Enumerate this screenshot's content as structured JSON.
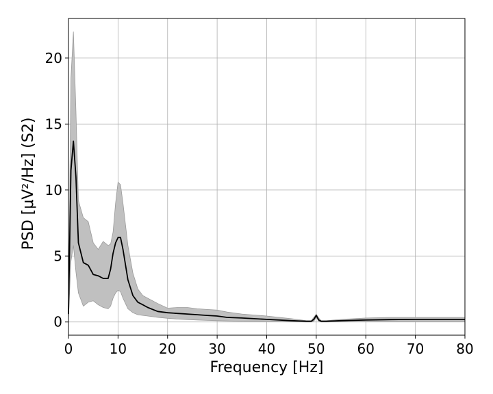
{
  "chart_data": {
    "type": "line",
    "title": "",
    "xlabel": "Frequency [Hz]",
    "ylabel": "PSD [μV²/Hz] (S2)",
    "xlim": [
      0,
      80
    ],
    "ylim": [
      -1,
      23
    ],
    "xticks": [
      0,
      10,
      20,
      30,
      40,
      50,
      60,
      70,
      80
    ],
    "yticks": [
      0,
      5,
      10,
      15,
      20
    ],
    "grid": true,
    "legend": "none",
    "colors": {
      "line": "#000000",
      "band": "#c0c0c0",
      "grid": "#b0b0b0"
    },
    "series": [
      {
        "x": [
          0,
          0.5,
          1,
          1.5,
          2,
          3,
          4,
          5,
          6,
          7,
          8,
          8.5,
          9,
          9.5,
          10,
          10.5,
          11,
          12,
          13,
          14,
          15,
          16,
          18,
          20,
          22,
          24,
          26,
          28,
          30,
          32,
          35,
          40,
          45,
          48,
          49,
          49.5,
          50,
          50.5,
          51,
          52,
          55,
          60,
          65,
          70,
          75,
          80
        ],
        "y": [
          0.6,
          11.5,
          13.7,
          11.0,
          6.0,
          4.5,
          4.3,
          3.6,
          3.5,
          3.3,
          3.3,
          4.0,
          5.2,
          6.0,
          6.4,
          6.4,
          5.5,
          3.2,
          2.0,
          1.5,
          1.3,
          1.1,
          0.8,
          0.7,
          0.65,
          0.6,
          0.55,
          0.5,
          0.45,
          0.35,
          0.3,
          0.2,
          0.1,
          0.05,
          0.05,
          0.2,
          0.5,
          0.15,
          0.05,
          0.05,
          0.1,
          0.15,
          0.18,
          0.2,
          0.2,
          0.2
        ]
      },
      {
        "x": [
          0,
          0.5,
          1,
          1.5,
          2,
          3,
          4,
          5,
          6,
          7,
          8,
          8.5,
          9,
          9.5,
          10,
          10.5,
          11,
          12,
          13,
          14,
          15,
          16,
          18,
          20,
          22,
          24,
          26,
          28,
          30,
          32,
          35,
          40,
          45,
          48,
          49,
          49.5,
          50,
          50.5,
          51,
          52,
          55,
          60,
          65,
          70,
          75,
          80
        ],
        "upper": [
          1.0,
          18.5,
          22.0,
          16.0,
          9.2,
          7.9,
          7.6,
          6.0,
          5.5,
          6.1,
          5.8,
          5.9,
          6.8,
          9.0,
          10.6,
          10.4,
          9.0,
          5.8,
          3.7,
          2.5,
          2.0,
          1.8,
          1.4,
          1.05,
          1.1,
          1.1,
          1.0,
          0.95,
          0.9,
          0.75,
          0.6,
          0.45,
          0.25,
          0.1,
          0.1,
          0.35,
          0.6,
          0.3,
          0.1,
          0.1,
          0.2,
          0.3,
          0.35,
          0.35,
          0.35,
          0.35
        ],
        "lower": [
          0.2,
          4.6,
          5.8,
          3.8,
          2.2,
          1.2,
          1.5,
          1.6,
          1.3,
          1.1,
          1.0,
          1.2,
          1.8,
          2.2,
          2.4,
          2.3,
          1.8,
          1.0,
          0.7,
          0.55,
          0.5,
          0.45,
          0.35,
          0.28,
          0.22,
          0.18,
          0.15,
          0.12,
          0.1,
          0.08,
          0.06,
          0.05,
          0.02,
          0.0,
          0.0,
          0.05,
          0.35,
          0.05,
          0.0,
          0.0,
          0.02,
          0.05,
          0.05,
          0.05,
          0.05,
          0.05
        ]
      }
    ]
  }
}
